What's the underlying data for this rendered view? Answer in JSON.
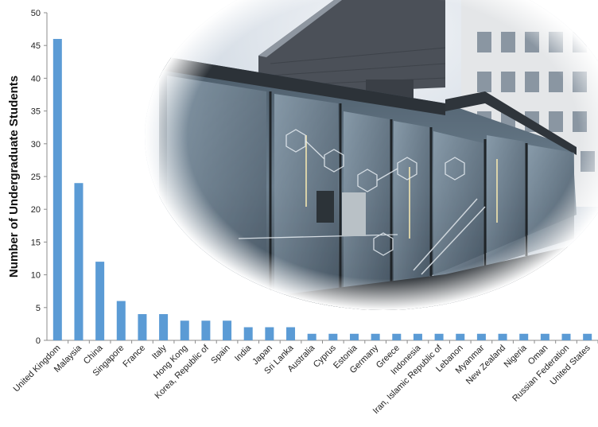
{
  "chart_data": {
    "type": "bar",
    "title": "",
    "xlabel": "",
    "ylabel": "Number of Undergraduate Students",
    "ylim": [
      0,
      50
    ],
    "yticks": [
      0,
      5,
      10,
      15,
      20,
      25,
      30,
      35,
      40,
      45,
      50
    ],
    "grid": false,
    "bar_color": "#5b9bd5",
    "categories": [
      "United Kingdom",
      "Malaysia",
      "China",
      "Singapore",
      "France",
      "Italy",
      "Hong Kong",
      "Korea, Republic of",
      "Spain",
      "India",
      "Japan",
      "Sri Lanka",
      "Australia",
      "Cyprus",
      "Estonia",
      "Germany",
      "Greece",
      "Indonesia",
      "Iran, Islamic Republic of",
      "Lebanon",
      "Myanmar",
      "New Zealand",
      "Nigeria",
      "Oman",
      "Russian Federation",
      "United States"
    ],
    "values": [
      46,
      24,
      12,
      6,
      4,
      4,
      3,
      3,
      3,
      2,
      2,
      2,
      1,
      1,
      1,
      1,
      1,
      1,
      1,
      1,
      1,
      1,
      1,
      1,
      1,
      1
    ]
  },
  "background_photo": {
    "description_icon": "building-photo"
  }
}
